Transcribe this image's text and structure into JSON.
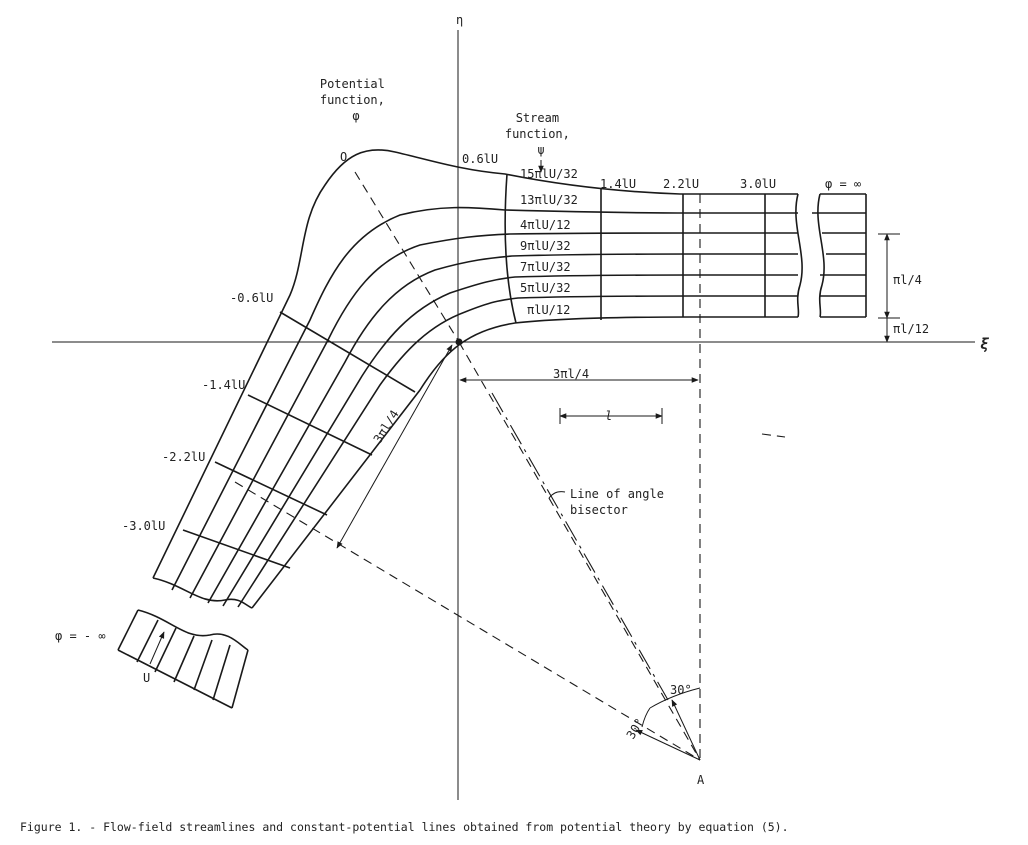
{
  "axes": {
    "eta": "η",
    "xi": "ξ"
  },
  "labels": {
    "potential_function": [
      "Potential",
      "function,",
      "φ"
    ],
    "stream_function": [
      "Stream",
      "function,",
      "ψ"
    ],
    "point_o": "O",
    "point_a": "A",
    "bisector": [
      "Line of angle",
      "bisector"
    ],
    "u": "U"
  },
  "potential_values": {
    "p06": "0.6lU",
    "p14": "1.4lU",
    "p22": "2.2lU",
    "p30": "3.0lU",
    "pinf": "φ = ∞",
    "m06": "-0.6lU",
    "m14": "-1.4lU",
    "m22": "-2.2lU",
    "m30": "-3.0lU",
    "minf": "φ = - ∞"
  },
  "stream_values": [
    "15πlU/32",
    "13πlU/32",
    "4πlU/12",
    "9πlU/32",
    "7πlU/32",
    "5πlU/32",
    "πlU/12"
  ],
  "dimensions": {
    "pi_l_4": "πl/4",
    "pi_l_12": "πl/12",
    "three_pi_l_4_h": "3πl/4",
    "three_pi_l_4_d": "3πl/4",
    "l": "l"
  },
  "angles": {
    "a1": "30°",
    "a2": "30°"
  },
  "caption": "Figure 1. - Flow-field streamlines and constant-potential lines obtained from potential theory by equation (5)."
}
